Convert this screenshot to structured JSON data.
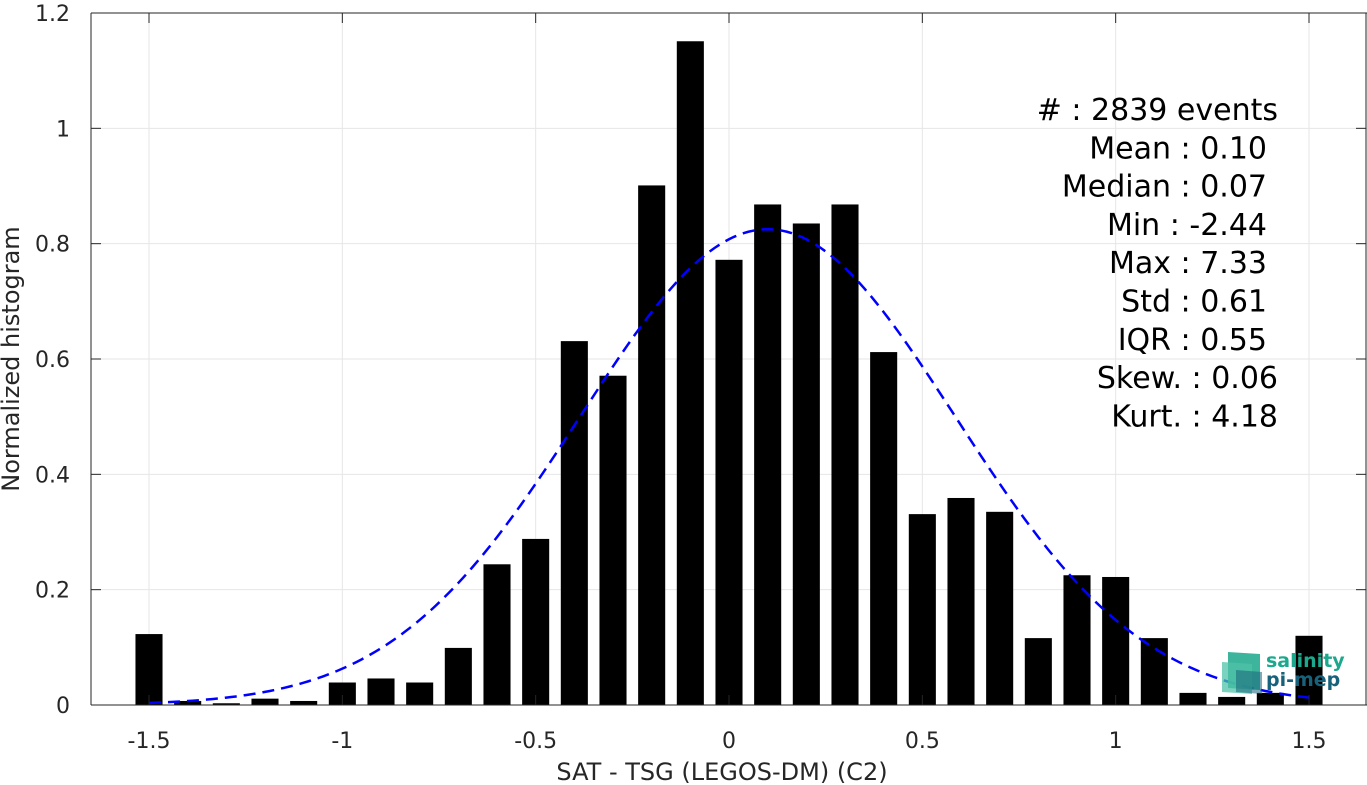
{
  "chart_data": {
    "type": "bar",
    "title": "",
    "xlabel": "SAT - TSG (LEGOS-DM) (C2)",
    "ylabel": "Normalized histogram",
    "xlim": [
      -1.65,
      1.65
    ],
    "ylim": [
      0,
      1.2
    ],
    "xticks": [
      -1.5,
      -1,
      -0.5,
      0,
      0.5,
      1,
      1.5
    ],
    "xtick_labels": [
      "-1.5",
      "-1",
      "-0.5",
      "0",
      "0.5",
      "1",
      "1.5"
    ],
    "yticks": [
      0,
      0.2,
      0.4,
      0.6,
      0.8,
      1,
      1.2
    ],
    "ytick_labels": [
      "0",
      "0.2",
      "0.4",
      "0.6",
      "0.8",
      "1",
      "1.2"
    ],
    "grid": true,
    "bar_color": "#000000",
    "bar_width": 0.07,
    "x": [
      -1.5,
      -1.4,
      -1.3,
      -1.2,
      -1.1,
      -1.0,
      -0.9,
      -0.8,
      -0.7,
      -0.6,
      -0.5,
      -0.4,
      -0.3,
      -0.2,
      -0.1,
      0.0,
      0.1,
      0.2,
      0.3,
      0.4,
      0.5,
      0.6,
      0.7,
      0.8,
      0.9,
      1.0,
      1.1,
      1.2,
      1.3,
      1.4,
      1.5
    ],
    "values": [
      0.123,
      0.007,
      0.003,
      0.011,
      0.007,
      0.039,
      0.046,
      0.039,
      0.099,
      0.244,
      0.288,
      0.631,
      0.571,
      0.901,
      1.151,
      0.772,
      0.868,
      0.835,
      0.868,
      0.612,
      0.331,
      0.359,
      0.335,
      0.116,
      0.225,
      0.222,
      0.116,
      0.021,
      0.014,
      0.021,
      0.12
    ],
    "fit": {
      "type": "normal",
      "mean": 0.1,
      "std": 0.485,
      "peak": 0.825,
      "xrange": [
        -1.5,
        1.5
      ],
      "color": "#0000ff",
      "style": "dashed"
    },
    "stats_lines": [
      "#  : 2839 events",
      "Mean : 0.10",
      "Median : 0.07",
      "Min : -2.44",
      "Max : 7.33",
      "Std : 0.61",
      "IQR : 0.55",
      "Skew. : 0.06",
      "Kurt. : 4.18"
    ]
  },
  "logo": {
    "line1": "salinity",
    "line2": "pi-mep",
    "color1": "#1ba88c",
    "color2": "#17627a"
  }
}
